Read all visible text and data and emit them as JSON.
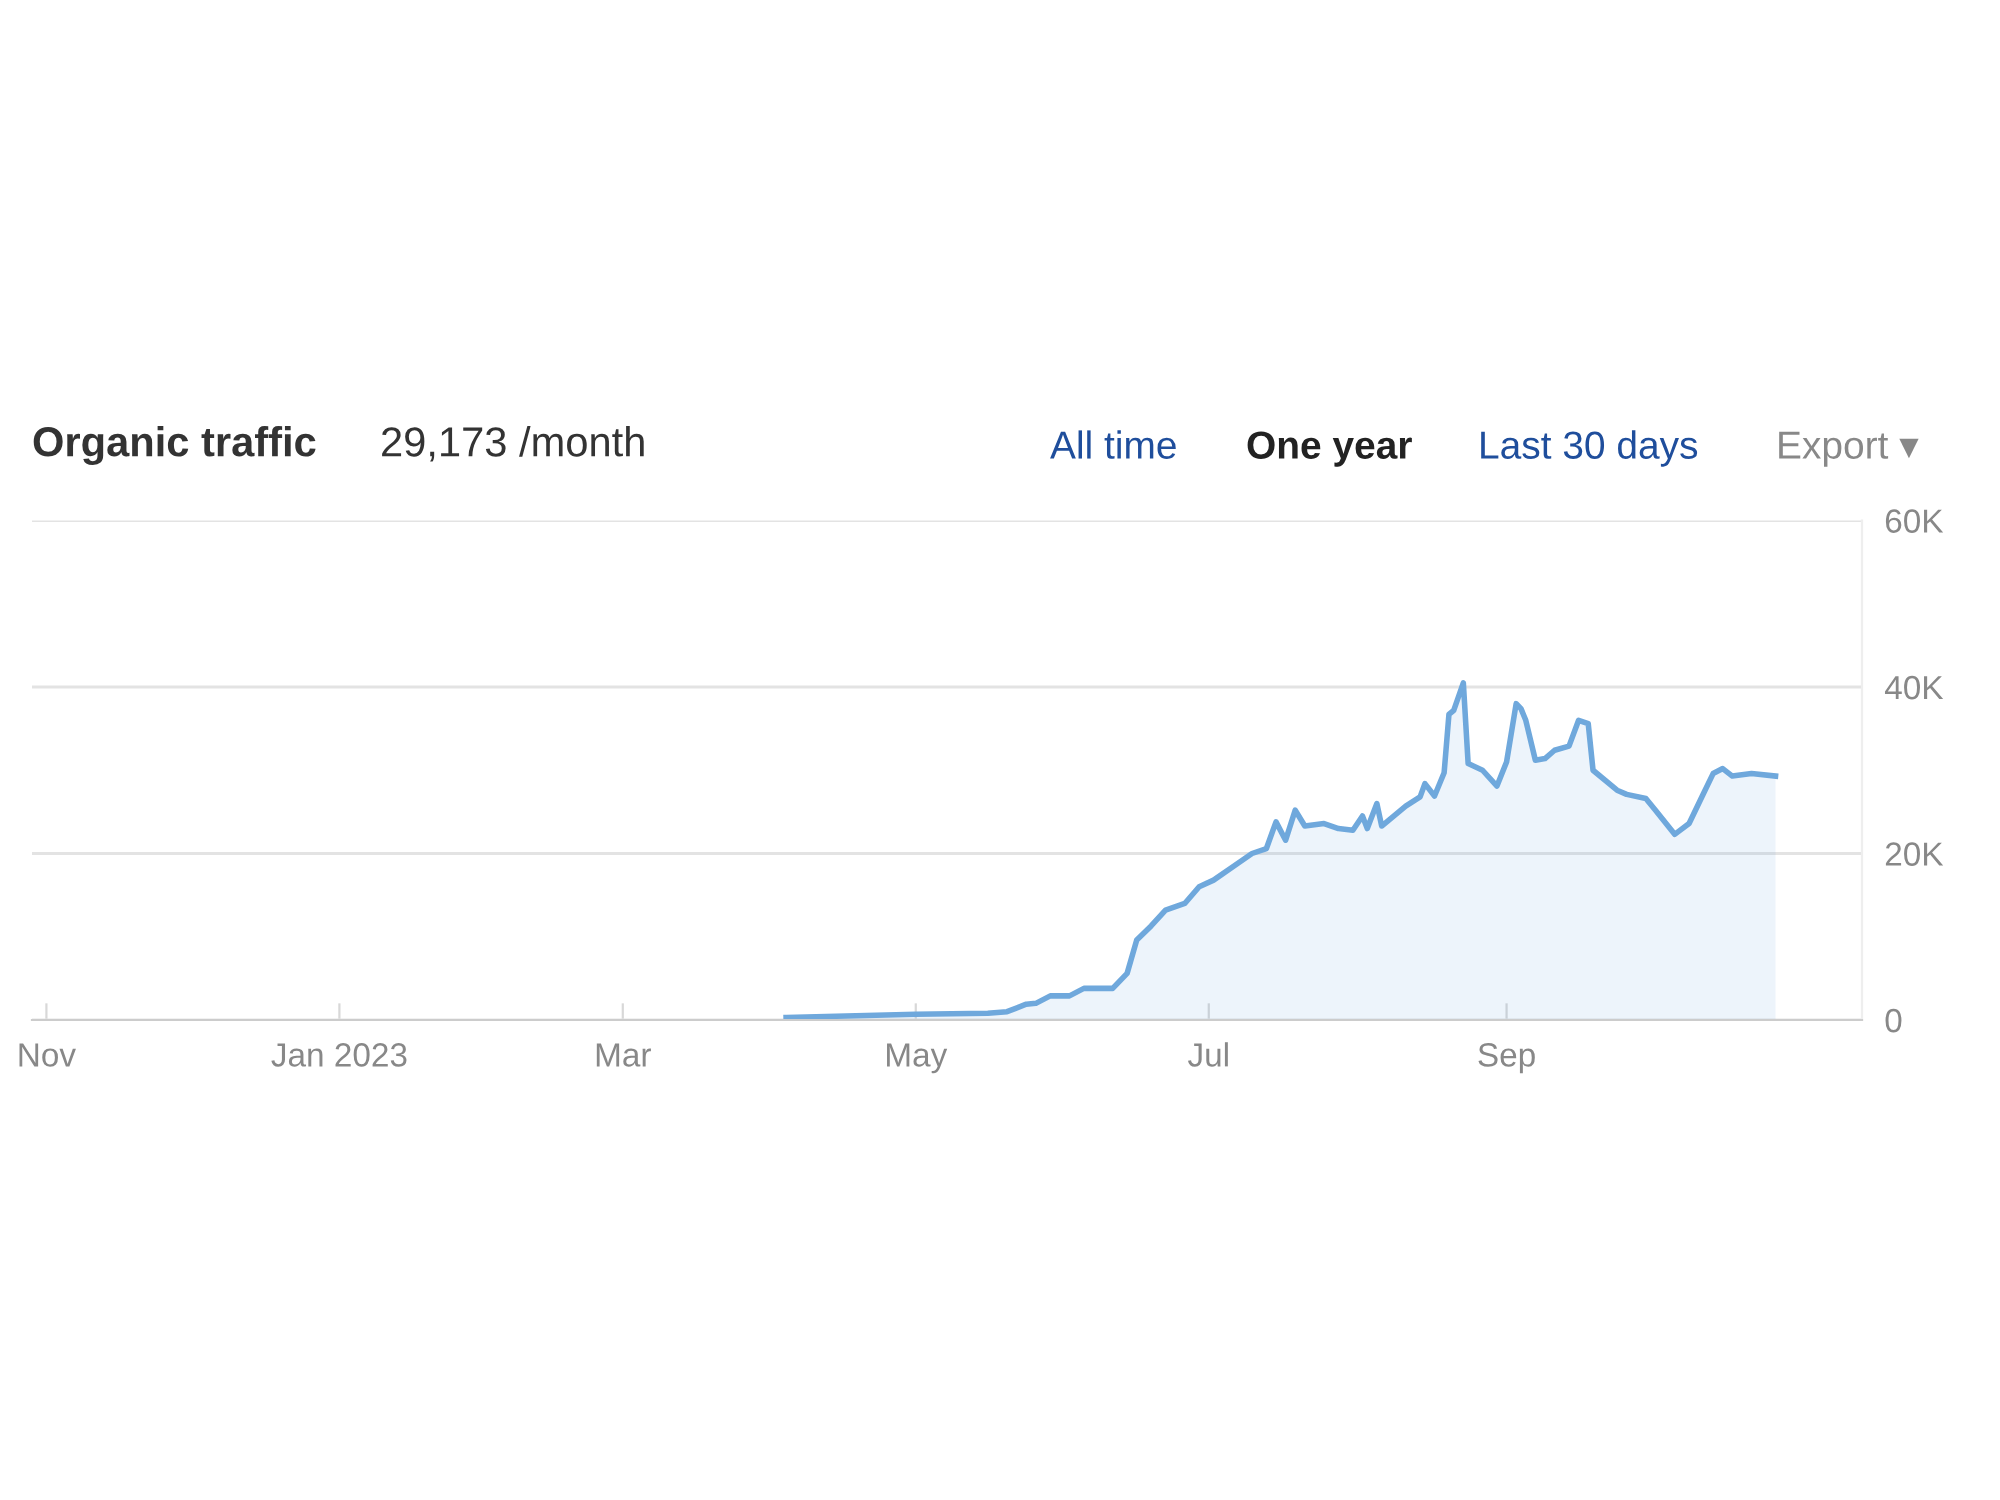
{
  "chart_data": {
    "type": "area",
    "title": "Organic traffic",
    "subtitle": "29,173 /month",
    "annotations": [
      "All time",
      "One year",
      "Last 30 days",
      "Export ▾"
    ],
    "x": [
      "2023-04-04",
      "2023-05-01",
      "2023-05-16",
      "2023-05-20",
      "2023-05-24",
      "2023-05-26",
      "2023-05-29",
      "2023-06-02",
      "2023-06-05",
      "2023-06-11",
      "2023-06-14",
      "2023-06-16",
      "2023-06-19",
      "2023-06-22",
      "2023-06-26",
      "2023-06-29",
      "2023-07-02",
      "2023-07-07",
      "2023-07-10",
      "2023-07-13",
      "2023-07-15",
      "2023-07-17",
      "2023-07-19",
      "2023-07-21",
      "2023-07-25",
      "2023-07-28",
      "2023-07-31",
      "2023-08-02",
      "2023-08-03",
      "2023-08-05",
      "2023-08-06",
      "2023-08-11",
      "2023-08-14",
      "2023-08-15",
      "2023-08-17",
      "2023-08-19",
      "2023-08-20",
      "2023-08-21",
      "2023-08-23",
      "2023-08-24",
      "2023-08-27",
      "2023-08-30",
      "2023-09-01",
      "2023-09-03",
      "2023-09-04",
      "2023-09-05",
      "2023-09-07",
      "2023-09-09",
      "2023-09-11",
      "2023-09-14",
      "2023-09-16",
      "2023-09-18",
      "2023-09-19",
      "2023-09-24",
      "2023-09-26",
      "2023-09-30",
      "2023-10-02",
      "2023-10-06",
      "2023-10-09",
      "2023-10-12",
      "2023-10-14",
      "2023-10-16",
      "2023-10-18",
      "2023-10-22",
      "2023-10-27"
    ],
    "series": [
      {
        "color": "#6fa8dc",
        "values": [
          300,
          700,
          800,
          1000,
          1900,
          2000,
          2900,
          2900,
          3800,
          3800,
          5600,
          9600,
          11300,
          13200,
          14000,
          16000,
          16800,
          18800,
          20000,
          20600,
          23800,
          21600,
          25200,
          23300,
          23600,
          23000,
          22800,
          24500,
          23000,
          26000,
          23300,
          25700,
          26800,
          28400,
          26900,
          29700,
          36700,
          37200,
          40500,
          30800,
          30000,
          28100,
          31000,
          38000,
          37400,
          36000,
          31200,
          31400,
          32400,
          32900,
          36000,
          35600,
          30000,
          27600,
          27100,
          26600,
          25200,
          22300,
          23600,
          27200,
          29600,
          30200,
          29300,
          29600,
          29300
        ]
      }
    ],
    "xlim": [
      "2022-10-29",
      "2023-11-14"
    ],
    "xticks": [
      {
        "value": "2022-11-01",
        "label": "Nov"
      },
      {
        "value": "2023-01-01",
        "label": "Jan 2023"
      },
      {
        "value": "2023-03-01",
        "label": "Mar"
      },
      {
        "value": "2023-05-01",
        "label": "May"
      },
      {
        "value": "2023-07-01",
        "label": "Jul"
      },
      {
        "value": "2023-09-01",
        "label": "Sep"
      }
    ],
    "ylim": [
      0,
      60000
    ],
    "yticks": [
      {
        "value": 0,
        "label": "0"
      },
      {
        "value": 20000,
        "label": "20K"
      },
      {
        "value": 40000,
        "label": "40K"
      },
      {
        "value": 60000,
        "label": "60K"
      }
    ],
    "grid": "y",
    "legend": false
  }
}
